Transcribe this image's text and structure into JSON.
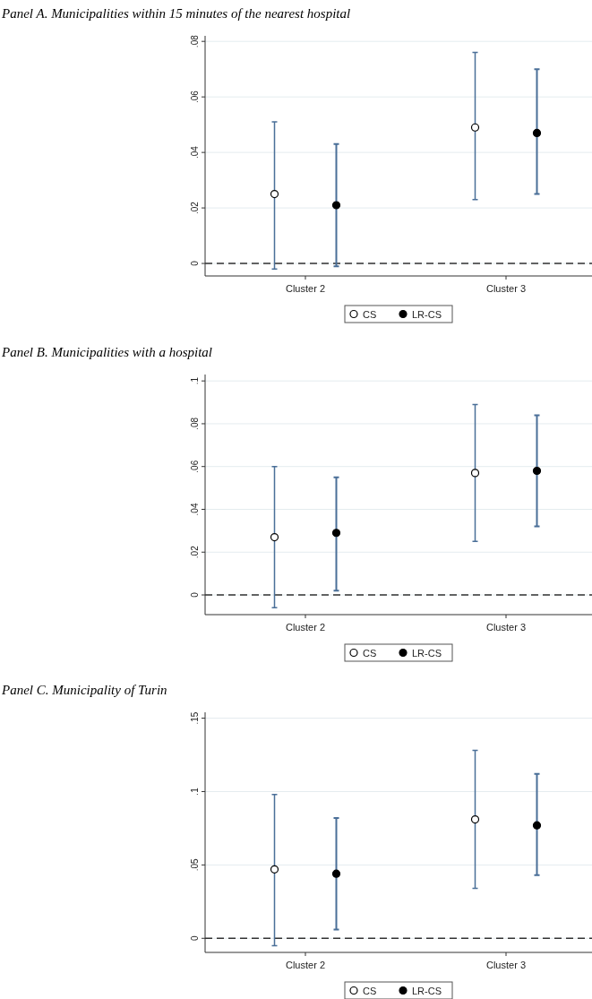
{
  "chart_data": [
    {
      "type": "scatter",
      "title": "Panel A. Municipalities within 15 minutes of the nearest hospital",
      "categories": [
        "Cluster 2",
        "Cluster 3"
      ],
      "ylim": [
        -0.0045,
        0.082
      ],
      "yticks": [
        {
          "value": 0,
          "label": "0"
        },
        {
          "value": 0.02,
          "label": ".02"
        },
        {
          "value": 0.04,
          "label": ".04"
        },
        {
          "value": 0.06,
          "label": ".06"
        },
        {
          "value": 0.08,
          "label": ".08"
        }
      ],
      "grid": "y",
      "legend": "bottom",
      "marker": "circle",
      "ref_lines": [
        {
          "axis": "y",
          "value": 0,
          "line_style": "dashed",
          "color": "#333333"
        }
      ],
      "series": [
        {
          "name": "CS",
          "color": "#ffffff",
          "values": [
            0.025,
            0.049
          ],
          "errors": [
            [
              -0.002,
              0.051
            ],
            [
              0.023,
              0.076
            ]
          ]
        },
        {
          "name": "LR-CS",
          "color": "#000000",
          "values": [
            0.021,
            0.047
          ],
          "errors": [
            [
              -0.001,
              0.043
            ],
            [
              0.025,
              0.07
            ]
          ]
        }
      ]
    },
    {
      "type": "scatter",
      "title": "Panel B. Municipalities with a hospital",
      "categories": [
        "Cluster 2",
        "Cluster 3"
      ],
      "ylim": [
        -0.0092,
        0.103
      ],
      "yticks": [
        {
          "value": 0,
          "label": "0"
        },
        {
          "value": 0.02,
          "label": ".02"
        },
        {
          "value": 0.04,
          "label": ".04"
        },
        {
          "value": 0.06,
          "label": ".06"
        },
        {
          "value": 0.08,
          "label": ".08"
        },
        {
          "value": 0.1,
          "label": ".1"
        }
      ],
      "grid": "y",
      "legend": "bottom",
      "marker": "circle",
      "ref_lines": [
        {
          "axis": "y",
          "value": 0,
          "line_style": "dashed",
          "color": "#333333"
        }
      ],
      "series": [
        {
          "name": "CS",
          "color": "#ffffff",
          "values": [
            0.027,
            0.057
          ],
          "errors": [
            [
              -0.006,
              0.06
            ],
            [
              0.025,
              0.089
            ]
          ]
        },
        {
          "name": "LR-CS",
          "color": "#000000",
          "values": [
            0.029,
            0.058
          ],
          "errors": [
            [
              0.002,
              0.055
            ],
            [
              0.032,
              0.084
            ]
          ]
        }
      ]
    },
    {
      "type": "scatter",
      "title": "Panel C. Municipality of Turin",
      "categories": [
        "Cluster 2",
        "Cluster 3"
      ],
      "ylim": [
        -0.0096,
        0.154
      ],
      "yticks": [
        {
          "value": 0,
          "label": "0"
        },
        {
          "value": 0.05,
          "label": ".05"
        },
        {
          "value": 0.1,
          "label": ".1"
        },
        {
          "value": 0.15,
          "label": ".15"
        }
      ],
      "grid": "y",
      "legend": "bottom",
      "marker": "circle",
      "ref_lines": [
        {
          "axis": "y",
          "value": 0,
          "line_style": "dashed",
          "color": "#333333"
        }
      ],
      "series": [
        {
          "name": "CS",
          "color": "#ffffff",
          "values": [
            0.047,
            0.081
          ],
          "errors": [
            [
              -0.005,
              0.098
            ],
            [
              0.034,
              0.128
            ]
          ]
        },
        {
          "name": "LR-CS",
          "color": "#000000",
          "values": [
            0.044,
            0.077
          ],
          "errors": [
            [
              0.006,
              0.082
            ],
            [
              0.043,
              0.112
            ]
          ]
        }
      ]
    }
  ]
}
